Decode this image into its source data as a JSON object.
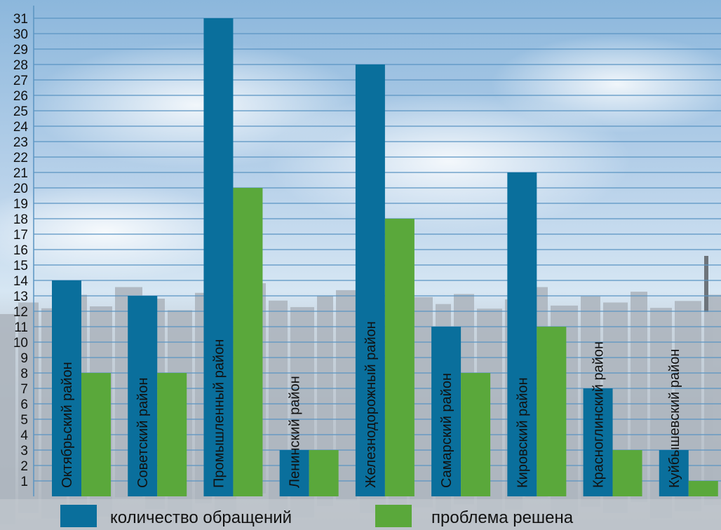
{
  "chart_data": {
    "type": "bar",
    "categories": [
      "Октябрьский район",
      "Советский район",
      "Промышленный район",
      "Ленинский район",
      "Железнодорожный район",
      "Самарский район",
      "Кировский район",
      "Красноглинский район",
      "Куйбышевский район"
    ],
    "series": [
      {
        "name": "количество обращений",
        "values": [
          14,
          13,
          31,
          3,
          28,
          11,
          21,
          7,
          3
        ]
      },
      {
        "name": "проблема решена",
        "values": [
          8,
          8,
          20,
          3,
          18,
          8,
          11,
          3,
          1
        ]
      }
    ],
    "yticks": [
      "1",
      "2",
      "3",
      "4",
      "5",
      "6",
      "7",
      "8",
      "9",
      "10",
      "11",
      "12",
      "13",
      "14",
      "15",
      "16",
      "17",
      "18",
      "19",
      "20",
      "21",
      "22",
      "23",
      "24",
      "25",
      "26",
      "27",
      "28",
      "29",
      "30",
      "31"
    ],
    "ylim": [
      0,
      31.5
    ],
    "grid": true,
    "legend_position": "bottom",
    "colors": {
      "series1": "#0a6f9c",
      "series2": "#5aa83b",
      "grid": "#5a94c2",
      "sky_top": "#8cb7dc",
      "sky_mid": "#d2e3f1",
      "city": "#b7bec6"
    }
  }
}
